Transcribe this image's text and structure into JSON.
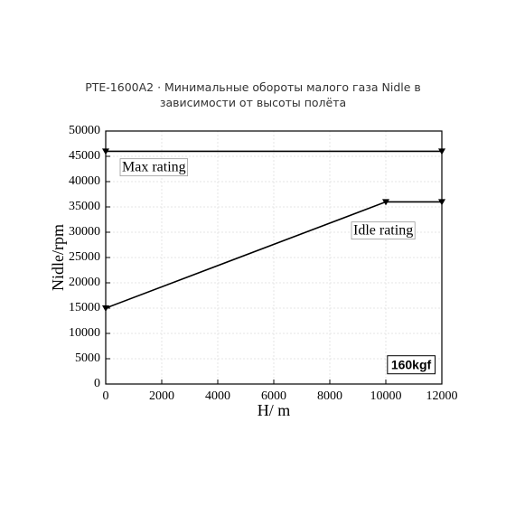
{
  "chart_data": {
    "type": "line",
    "title": "PTE-1600A2 · Минимальные обороты малого газа Nidle в зависимости от высоты полёта",
    "x_label": "H/ m",
    "y_label": "Nidle/rpm",
    "xlim": [
      0,
      12000
    ],
    "xticks": [
      0,
      2000,
      4000,
      6000,
      8000,
      10000,
      12000
    ],
    "ylim": [
      0,
      50000
    ],
    "yticks": [
      0,
      5000,
      10000,
      15000,
      20000,
      25000,
      30000,
      35000,
      40000,
      45000,
      50000
    ],
    "grid": true,
    "series": [
      {
        "name": "Max rating",
        "color": "#000000",
        "x": [
          0,
          12000
        ],
        "values": [
          46000,
          46000
        ]
      },
      {
        "name": "Idle rating",
        "color": "#000000",
        "x": [
          0,
          10000,
          12000
        ],
        "values": [
          15000,
          36000,
          36000
        ]
      }
    ],
    "annotations": [
      "160kgf"
    ]
  }
}
